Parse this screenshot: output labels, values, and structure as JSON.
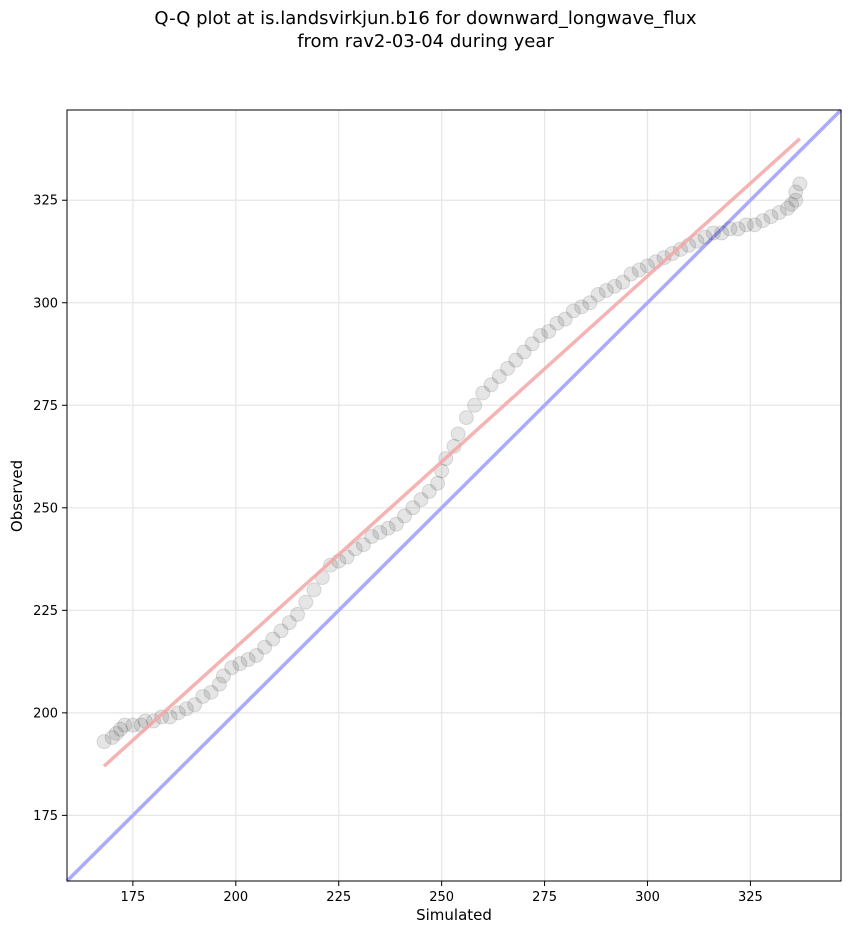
{
  "chart_data": {
    "type": "scatter",
    "title": "Q-Q plot at is.landsvirkjun.b16 for downward_longwave_flux",
    "subtitle": "from rav2-03-04 during year",
    "xlabel": "Simulated",
    "ylabel": "Observed",
    "xlim": [
      159,
      347
    ],
    "ylim": [
      159,
      347
    ],
    "xticks": [
      175,
      200,
      225,
      250,
      275,
      300,
      325
    ],
    "yticks": [
      175,
      200,
      225,
      250,
      275,
      300,
      325
    ],
    "grid": true,
    "one_to_one_line": {
      "color": "#aaaaff",
      "from": [
        159,
        159
      ],
      "to": [
        347,
        347
      ]
    },
    "fit_line": {
      "color": "#f4a6a6",
      "from": [
        168,
        187
      ],
      "to": [
        337,
        340
      ]
    },
    "quantiles": [
      [
        168,
        193
      ],
      [
        170,
        194
      ],
      [
        171,
        195
      ],
      [
        172,
        196
      ],
      [
        173,
        197
      ],
      [
        175,
        197
      ],
      [
        177,
        197
      ],
      [
        178,
        198
      ],
      [
        180,
        198
      ],
      [
        182,
        199
      ],
      [
        184,
        199
      ],
      [
        186,
        200
      ],
      [
        188,
        201
      ],
      [
        190,
        202
      ],
      [
        192,
        204
      ],
      [
        194,
        205
      ],
      [
        196,
        207
      ],
      [
        197,
        209
      ],
      [
        199,
        211
      ],
      [
        201,
        212
      ],
      [
        203,
        213
      ],
      [
        205,
        214
      ],
      [
        207,
        216
      ],
      [
        209,
        218
      ],
      [
        211,
        220
      ],
      [
        213,
        222
      ],
      [
        215,
        224
      ],
      [
        217,
        227
      ],
      [
        219,
        230
      ],
      [
        221,
        233
      ],
      [
        223,
        236
      ],
      [
        225,
        237
      ],
      [
        227,
        238
      ],
      [
        229,
        240
      ],
      [
        231,
        241
      ],
      [
        233,
        243
      ],
      [
        235,
        244
      ],
      [
        237,
        245
      ],
      [
        239,
        246
      ],
      [
        241,
        248
      ],
      [
        243,
        250
      ],
      [
        245,
        252
      ],
      [
        247,
        254
      ],
      [
        249,
        256
      ],
      [
        250,
        259
      ],
      [
        251,
        262
      ],
      [
        253,
        265
      ],
      [
        254,
        268
      ],
      [
        256,
        272
      ],
      [
        258,
        275
      ],
      [
        260,
        278
      ],
      [
        262,
        280
      ],
      [
        264,
        282
      ],
      [
        266,
        284
      ],
      [
        268,
        286
      ],
      [
        270,
        288
      ],
      [
        272,
        290
      ],
      [
        274,
        292
      ],
      [
        276,
        293
      ],
      [
        278,
        295
      ],
      [
        280,
        296
      ],
      [
        282,
        298
      ],
      [
        284,
        299
      ],
      [
        286,
        300
      ],
      [
        288,
        302
      ],
      [
        290,
        303
      ],
      [
        292,
        304
      ],
      [
        294,
        305
      ],
      [
        296,
        307
      ],
      [
        298,
        308
      ],
      [
        300,
        309
      ],
      [
        302,
        310
      ],
      [
        304,
        311
      ],
      [
        306,
        312
      ],
      [
        308,
        313
      ],
      [
        310,
        314
      ],
      [
        312,
        315
      ],
      [
        314,
        316
      ],
      [
        316,
        317
      ],
      [
        318,
        317
      ],
      [
        320,
        318
      ],
      [
        322,
        318
      ],
      [
        324,
        319
      ],
      [
        326,
        319
      ],
      [
        328,
        320
      ],
      [
        330,
        321
      ],
      [
        332,
        322
      ],
      [
        334,
        323
      ],
      [
        335,
        324
      ],
      [
        336,
        325
      ],
      [
        336,
        327
      ],
      [
        337,
        329
      ]
    ]
  }
}
